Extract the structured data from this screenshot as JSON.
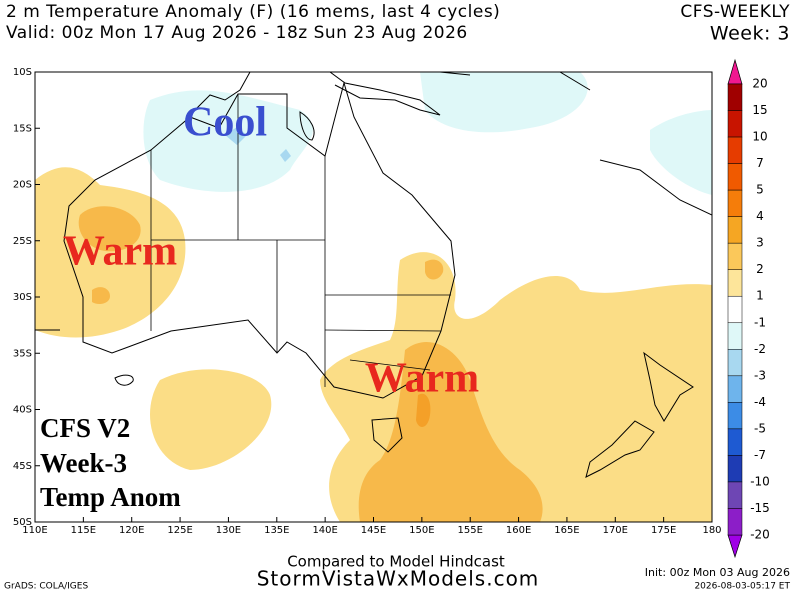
{
  "header": {
    "title": "2 m Temperature Anomaly (F) (16 mems, last 4 cycles)",
    "valid": "Valid: 00z Mon 17 Aug 2026 - 18z Sun 23 Aug 2026",
    "model": "CFS-WEEKLY",
    "week": "Week: 3"
  },
  "map": {
    "lat_labels": [
      "10S",
      "15S",
      "20S",
      "25S",
      "30S",
      "35S",
      "40S",
      "45S",
      "50S"
    ],
    "lon_labels": [
      "110E",
      "115E",
      "120E",
      "125E",
      "130E",
      "135E",
      "140E",
      "145E",
      "150E",
      "155E",
      "160E",
      "165E",
      "170E",
      "175E",
      "180"
    ],
    "annotations": [
      "Cool",
      "Warm",
      "Warm"
    ],
    "box": [
      "CFS V2",
      "Week-3",
      "Temp Anom"
    ]
  },
  "colorbar": {
    "labels": [
      20,
      15,
      10,
      7,
      5,
      4,
      3,
      2,
      1,
      -1,
      -2,
      -3,
      -4,
      -5,
      -7,
      -10,
      -15,
      -20
    ],
    "colors": [
      "#f01890",
      "#a00000",
      "#c81400",
      "#e63c00",
      "#f05a00",
      "#f57d0a",
      "#f5a623",
      "#fbc85a",
      "#fde59a",
      "#ffffff",
      "#dff8f8",
      "#a8d8f0",
      "#6eb4ec",
      "#3c8ce6",
      "#1e5ad2",
      "#1e3cb4",
      "#6e46b4",
      "#8c1ec8",
      "#a000e6"
    ]
  },
  "footer": {
    "compared": "Compared to Model Hindcast",
    "site": "StormVistaWxModels.com",
    "init": "Init: 00z Mon 03 Aug 2026",
    "grads": "GrADS: COLA/IGES",
    "timestamp": "2026-08-03-05:17 ET"
  }
}
